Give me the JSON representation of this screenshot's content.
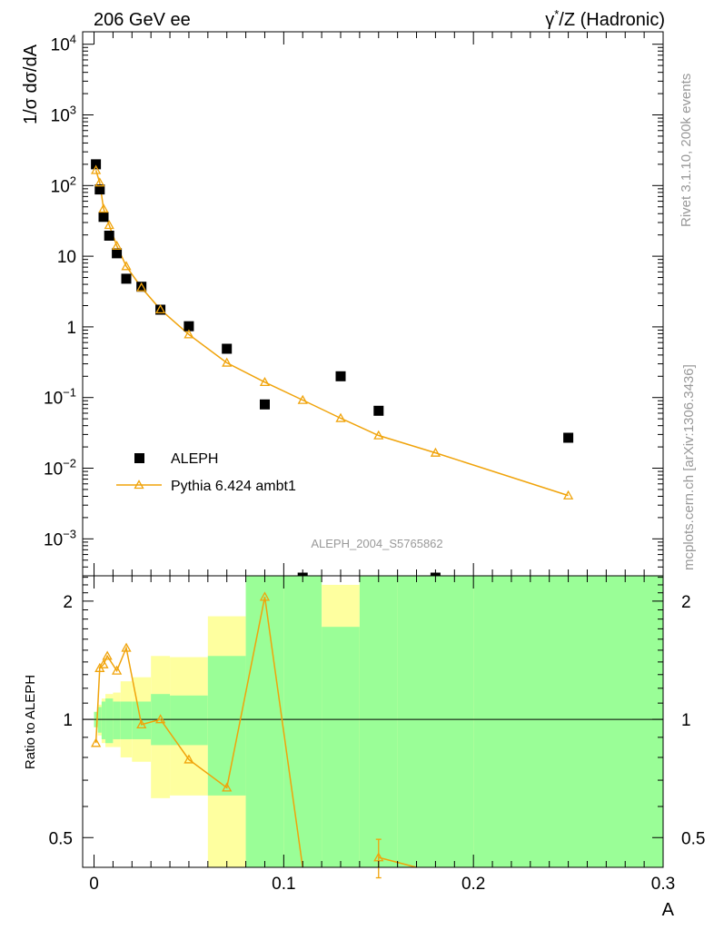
{
  "header": {
    "left": "206 GeV ee",
    "right_gamma": "γ",
    "right_star": "*",
    "right_rest": "/Z (Hadronic)"
  },
  "side": {
    "rivet": "Rivet 3.1.10,  200k events",
    "mcplots": "mcplots.cern.ch [arXiv:1306.3436]"
  },
  "analysis_id": "ALEPH_2004_S5765862",
  "colors": {
    "mc": "#f0a30a",
    "band_inner": "#9afe97",
    "band_outer": "#feff9f",
    "data": "#000000"
  },
  "chart_data": [
    {
      "type": "scatter",
      "panel": "main",
      "ylabel": "1/σ  dσ/dA",
      "yscale": "log",
      "ylim": [
        0.0003,
        15000
      ],
      "xlim": [
        -0.006,
        0.3
      ],
      "y_ticks": [
        {
          "v": 10000,
          "base": "10",
          "exp": "4"
        },
        {
          "v": 1000,
          "base": "10",
          "exp": "3"
        },
        {
          "v": 100,
          "base": "10",
          "exp": "2"
        },
        {
          "v": 10,
          "base": "10",
          "exp": ""
        },
        {
          "v": 1,
          "base": "1",
          "exp": ""
        },
        {
          "v": 0.1,
          "base": "10",
          "exp": "−1"
        },
        {
          "v": 0.01,
          "base": "10",
          "exp": "−2"
        },
        {
          "v": 0.001,
          "base": "10",
          "exp": "−3"
        }
      ],
      "legend": {
        "position": "lower-left",
        "entries": [
          "ALEPH",
          "Pythia 6.424 ambt1"
        ]
      },
      "series": [
        {
          "name": "ALEPH",
          "marker": "square",
          "x": [
            0.001,
            0.003,
            0.005,
            0.008,
            0.012,
            0.017,
            0.025,
            0.035,
            0.05,
            0.07,
            0.09,
            0.11,
            0.13,
            0.15,
            0.18,
            0.25
          ],
          "y": [
            200,
            88,
            36,
            19.5,
            11,
            4.8,
            3.7,
            1.75,
            1.02,
            0.49,
            0.08,
            0.00026,
            0.2,
            0.065,
            0.00026,
            0.027
          ]
        },
        {
          "name": "Pythia 6.424 ambt1",
          "marker": "open-triangle",
          "x": [
            0.001,
            0.003,
            0.005,
            0.008,
            0.012,
            0.017,
            0.025,
            0.035,
            0.05,
            0.07,
            0.09,
            0.11,
            0.13,
            0.15,
            0.18,
            0.25
          ],
          "y": [
            165,
            110,
            47,
            27.5,
            14,
            7.2,
            3.6,
            1.76,
            0.78,
            0.31,
            0.165,
            0.092,
            0.051,
            0.029,
            0.0165,
            0.0041
          ]
        }
      ]
    },
    {
      "type": "line",
      "panel": "ratio",
      "ylabel": "Ratio to ALEPH",
      "xlabel": "A",
      "yscale": "log",
      "ylim": [
        0.42,
        2.32
      ],
      "xlim": [
        -0.006,
        0.3
      ],
      "y_ticks": [
        0.5,
        1,
        2
      ],
      "x_ticks": [
        {
          "v": 0,
          "label": "0"
        },
        {
          "v": 0.1,
          "label": "0.1"
        },
        {
          "v": 0.2,
          "label": "0.2"
        },
        {
          "v": 0.3,
          "label": "0.3"
        }
      ],
      "uncertainty_bands": [
        {
          "x0": 0.0,
          "x1": 0.002,
          "inner": [
            0.955,
            1.045
          ],
          "outer": [
            0.955,
            1.045
          ]
        },
        {
          "x0": 0.002,
          "x1": 0.004,
          "inner": [
            0.925,
            1.075
          ],
          "outer": [
            0.91,
            1.09
          ]
        },
        {
          "x0": 0.004,
          "x1": 0.006,
          "inner": [
            0.89,
            1.11
          ],
          "outer": [
            0.87,
            1.13
          ]
        },
        {
          "x0": 0.006,
          "x1": 0.01,
          "inner": [
            0.87,
            1.13
          ],
          "outer": [
            0.85,
            1.16
          ]
        },
        {
          "x0": 0.01,
          "x1": 0.014,
          "inner": [
            0.89,
            1.11
          ],
          "outer": [
            0.85,
            1.17
          ]
        },
        {
          "x0": 0.014,
          "x1": 0.02,
          "inner": [
            0.89,
            1.11
          ],
          "outer": [
            0.8,
            1.25
          ]
        },
        {
          "x0": 0.02,
          "x1": 0.03,
          "inner": [
            0.89,
            1.11
          ],
          "outer": [
            0.78,
            1.28
          ]
        },
        {
          "x0": 0.03,
          "x1": 0.04,
          "inner": [
            0.86,
            1.16
          ],
          "outer": [
            0.63,
            1.45
          ]
        },
        {
          "x0": 0.04,
          "x1": 0.06,
          "inner": [
            0.86,
            1.15
          ],
          "outer": [
            0.64,
            1.44
          ]
        },
        {
          "x0": 0.06,
          "x1": 0.08,
          "inner": [
            0.64,
            1.45
          ],
          "outer": [
            0.4,
            1.83
          ]
        },
        {
          "x0": 0.08,
          "x1": 0.1,
          "inner": [
            0.4,
            2.5
          ],
          "outer": [
            0.4,
            2.5
          ]
        },
        {
          "x0": 0.1,
          "x1": 0.12,
          "inner": [
            0.4,
            2.5
          ],
          "outer": [
            0.4,
            2.5
          ]
        },
        {
          "x0": 0.12,
          "x1": 0.14,
          "inner": [
            0.4,
            1.72
          ],
          "outer": [
            0.4,
            2.2
          ]
        },
        {
          "x0": 0.14,
          "x1": 0.16,
          "inner": [
            0.4,
            2.5
          ],
          "outer": [
            0.4,
            2.5
          ]
        },
        {
          "x0": 0.16,
          "x1": 0.2,
          "inner": [
            0.4,
            2.5
          ],
          "outer": [
            0.4,
            2.5
          ]
        },
        {
          "x0": 0.2,
          "x1": 0.3,
          "inner": [
            0.4,
            2.5
          ],
          "outer": [
            0.4,
            2.5
          ]
        }
      ],
      "series": [
        {
          "name": "Pythia 6.424 ambt1",
          "x": [
            0.001,
            0.003,
            0.005,
            0.007,
            0.012,
            0.017,
            0.025,
            0.035,
            0.05,
            0.07,
            0.09,
            0.11
          ],
          "y": [
            0.87,
            1.35,
            1.38,
            1.45,
            1.33,
            1.52,
            0.97,
            1.0,
            0.79,
            0.67,
            2.05,
            0.38
          ]
        },
        {
          "name": "Pythia 6.424 ambt1",
          "x": [
            0.15,
            0.17
          ],
          "y": [
            0.445,
            0.28
          ],
          "err": [
            0.05,
            0
          ]
        }
      ]
    }
  ]
}
